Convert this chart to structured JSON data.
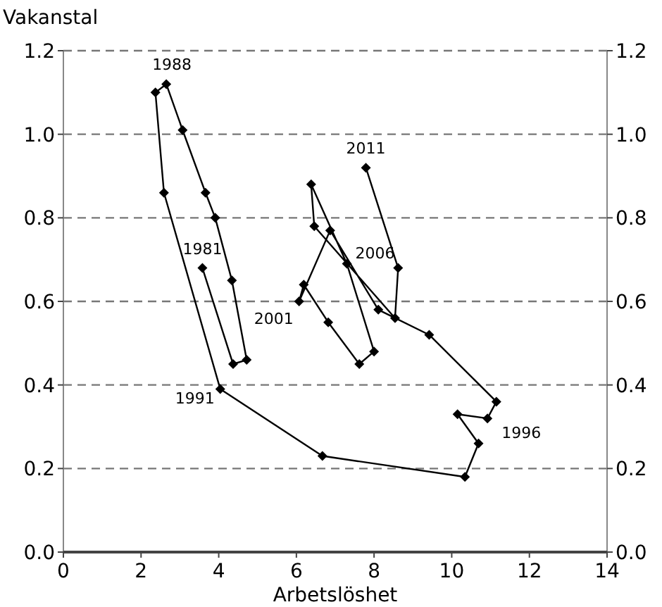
{
  "chart_data": {
    "type": "line",
    "xlabel": "Arbetslöshet",
    "ylabel": "Vakanstal",
    "series": [
      {
        "color": "#000000",
        "x": [
          3.58,
          4.37,
          4.72,
          4.34,
          3.91,
          3.66,
          3.07,
          2.65,
          2.37,
          2.59,
          4.04,
          6.67,
          10.34,
          10.69,
          10.15,
          10.92,
          11.15,
          9.42,
          8.11,
          6.87,
          6.07,
          6.19,
          6.82,
          7.62,
          8.0,
          7.3,
          6.38,
          6.46,
          8.54,
          8.62,
          7.79
        ],
        "values": [
          0.68,
          0.45,
          0.46,
          0.65,
          0.8,
          0.86,
          1.01,
          1.12,
          1.1,
          0.86,
          0.39,
          0.23,
          0.18,
          0.26,
          0.33,
          0.32,
          0.36,
          0.52,
          0.58,
          0.77,
          0.6,
          0.64,
          0.55,
          0.45,
          0.48,
          0.69,
          0.88,
          0.78,
          0.56,
          0.68,
          0.92
        ]
      }
    ],
    "annotations": [
      {
        "text": "1981",
        "x": 3.58,
        "y": 0.68
      },
      {
        "text": "1988",
        "x": 2.65,
        "y": 1.12
      },
      {
        "text": "1991",
        "x": 4.04,
        "y": 0.39
      },
      {
        "text": "1996",
        "x": 10.92,
        "y": 0.32
      },
      {
        "text": "2001",
        "x": 6.07,
        "y": 0.6
      },
      {
        "text": "2006",
        "x": 7.3,
        "y": 0.69
      },
      {
        "text": "2011",
        "x": 7.79,
        "y": 0.92
      }
    ],
    "xlim": [
      0,
      14
    ],
    "xticks": [
      0,
      2,
      4,
      6,
      8,
      10,
      12,
      14
    ],
    "ylim": [
      0,
      1.2
    ],
    "yticks": [
      {
        "value": 0,
        "label": "0.0"
      },
      {
        "value": 0.2,
        "label": "0.2"
      },
      {
        "value": 0.4,
        "label": "0.4"
      },
      {
        "value": 0.6,
        "label": "0.6"
      },
      {
        "value": 0.8,
        "label": "0.8"
      },
      {
        "value": 1.0,
        "label": "1.0"
      },
      {
        "value": 1.2,
        "label": "1.2"
      }
    ],
    "y2lim": [
      0,
      1.2
    ],
    "y2ticks": [
      {
        "value": 0,
        "label": "0.0"
      },
      {
        "value": 0.2,
        "label": "0.2"
      },
      {
        "value": 0.4,
        "label": "0.4"
      },
      {
        "value": 0.6,
        "label": "0.6"
      },
      {
        "value": 0.8,
        "label": "0.8"
      },
      {
        "value": 1.0,
        "label": "1.0"
      },
      {
        "value": 1.2,
        "label": "1.2"
      }
    ],
    "grid": "y",
    "marker": "diamond",
    "line_style": "solid"
  }
}
